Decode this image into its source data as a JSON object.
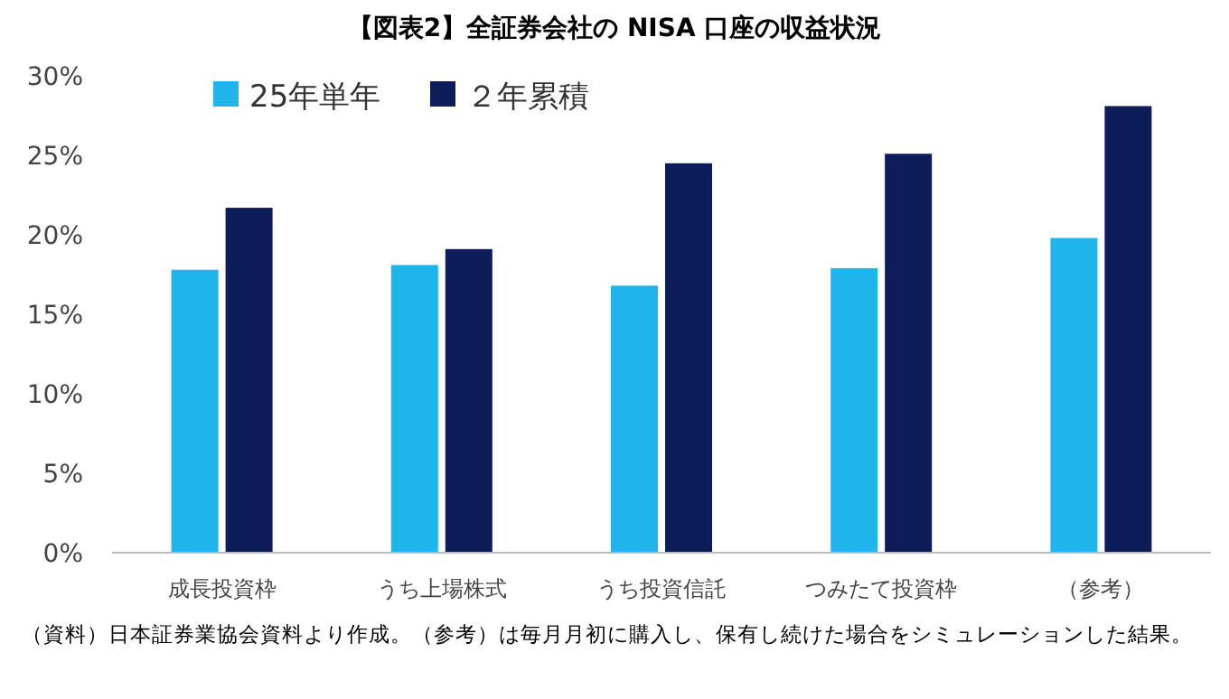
{
  "chart_data": {
    "type": "bar",
    "title": "【図表2】全証券会社の NISA 口座の収益状況",
    "categories": [
      "成長投資枠",
      "うち上場株式",
      "うち投資信託",
      "つみたて投資枠",
      "（参考）"
    ],
    "series": [
      {
        "name": "25年単年",
        "color": "#1fb4ea",
        "values": [
          17.8,
          18.1,
          16.8,
          17.9,
          19.8
        ]
      },
      {
        "name": "２年累積",
        "color": "#0d1d5a",
        "values": [
          21.7,
          19.1,
          24.5,
          25.1,
          28.1
        ]
      }
    ],
    "ylim": [
      0,
      30
    ],
    "yticks": [
      {
        "value": 0,
        "label": "0%"
      },
      {
        "value": 5,
        "label": "5%"
      },
      {
        "value": 10,
        "label": "10%"
      },
      {
        "value": 15,
        "label": "15%"
      },
      {
        "value": 20,
        "label": "20%"
      },
      {
        "value": 25,
        "label": "25%"
      },
      {
        "value": 30,
        "label": "30%"
      }
    ],
    "legend": "top left",
    "grid": false,
    "annotations": [
      "（資料）日本証券業協会資料より作成。（参考）は毎月月初に購入し、保有し続けた場合をシミュレーションした結果。"
    ]
  }
}
